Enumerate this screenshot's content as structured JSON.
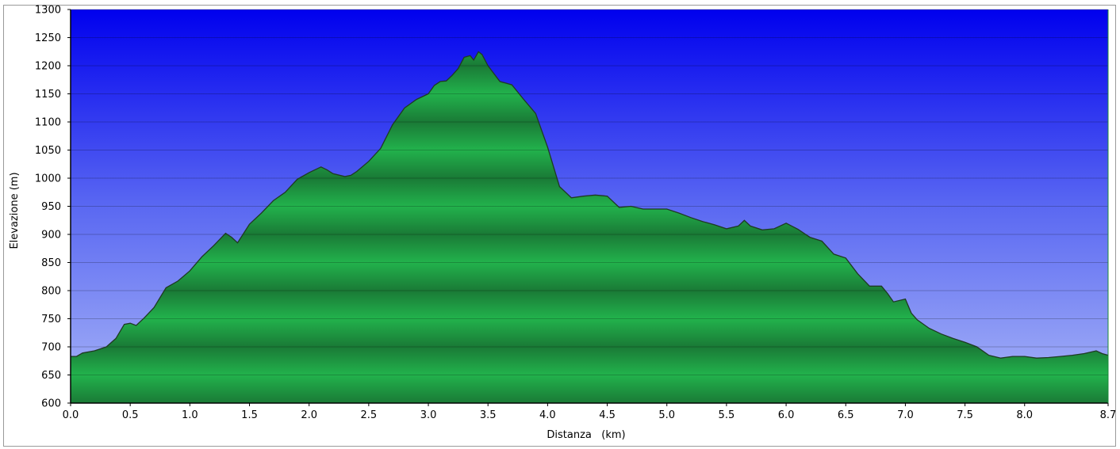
{
  "chart_data": {
    "type": "area",
    "title": "",
    "xlabel": "Distanza   (km)",
    "ylabel": "Elevazione (m)",
    "xlim": [
      0,
      8.7
    ],
    "ylim": [
      600,
      1300
    ],
    "x_ticks": [
      0,
      0.5,
      1,
      1.5,
      2,
      2.5,
      3,
      3.5,
      4,
      4.5,
      5,
      5.5,
      6,
      6.5,
      7,
      7.5,
      8,
      8.7
    ],
    "x_tick_labels": [
      "0.0",
      "0.5",
      "1.0",
      "1.5",
      "2.0",
      "2.5",
      "3.0",
      "3.5",
      "4.0",
      "4.5",
      "5.0",
      "5.5",
      "6.0",
      "6.5",
      "7.0",
      "7.5",
      "8.0",
      "8.7"
    ],
    "y_ticks": [
      600,
      650,
      700,
      750,
      800,
      850,
      900,
      950,
      1000,
      1050,
      1100,
      1150,
      1200,
      1250,
      1300
    ],
    "y_tick_labels": [
      "600",
      "650",
      "700",
      "750",
      "800",
      "850",
      "900",
      "950",
      "1000",
      "1050",
      "1100",
      "1150",
      "1200",
      "1250",
      "1300"
    ],
    "grid": true,
    "series": [
      {
        "x": [
          0.0,
          0.05,
          0.1,
          0.2,
          0.3,
          0.38,
          0.45,
          0.5,
          0.55,
          0.62,
          0.7,
          0.8,
          0.9,
          1.0,
          1.1,
          1.2,
          1.3,
          1.35,
          1.4,
          1.5,
          1.6,
          1.7,
          1.8,
          1.9,
          2.0,
          2.1,
          2.15,
          2.2,
          2.3,
          2.35,
          2.4,
          2.5,
          2.6,
          2.7,
          2.8,
          2.9,
          3.0,
          3.05,
          3.1,
          3.15,
          3.2,
          3.25,
          3.3,
          3.35,
          3.38,
          3.42,
          3.45,
          3.5,
          3.6,
          3.7,
          3.8,
          3.9,
          4.0,
          4.1,
          4.2,
          4.3,
          4.4,
          4.5,
          4.6,
          4.7,
          4.8,
          4.9,
          5.0,
          5.1,
          5.2,
          5.3,
          5.4,
          5.5,
          5.6,
          5.65,
          5.7,
          5.8,
          5.9,
          6.0,
          6.1,
          6.2,
          6.3,
          6.4,
          6.5,
          6.6,
          6.7,
          6.8,
          6.85,
          6.9,
          7.0,
          7.05,
          7.1,
          7.2,
          7.3,
          7.4,
          7.5,
          7.6,
          7.7,
          7.8,
          7.9,
          8.0,
          8.1,
          8.2,
          8.3,
          8.4,
          8.5,
          8.6,
          8.65,
          8.7
        ],
        "y": [
          683,
          683,
          689,
          693,
          700,
          715,
          740,
          742,
          738,
          752,
          770,
          805,
          817,
          835,
          860,
          880,
          902,
          895,
          885,
          918,
          938,
          960,
          975,
          998,
          1010,
          1020,
          1015,
          1008,
          1003,
          1005,
          1012,
          1030,
          1053,
          1095,
          1125,
          1140,
          1150,
          1165,
          1172,
          1173,
          1183,
          1195,
          1215,
          1218,
          1210,
          1225,
          1220,
          1200,
          1172,
          1166,
          1140,
          1115,
          1055,
          985,
          965,
          968,
          970,
          968,
          948,
          950,
          945,
          945,
          945,
          938,
          930,
          923,
          917,
          910,
          915,
          925,
          915,
          908,
          910,
          920,
          909,
          895,
          888,
          865,
          858,
          830,
          808,
          808,
          795,
          780,
          785,
          760,
          748,
          733,
          723,
          715,
          708,
          700,
          685,
          680,
          683,
          683,
          680,
          681,
          683,
          685,
          688,
          693,
          688,
          685
        ]
      }
    ]
  }
}
